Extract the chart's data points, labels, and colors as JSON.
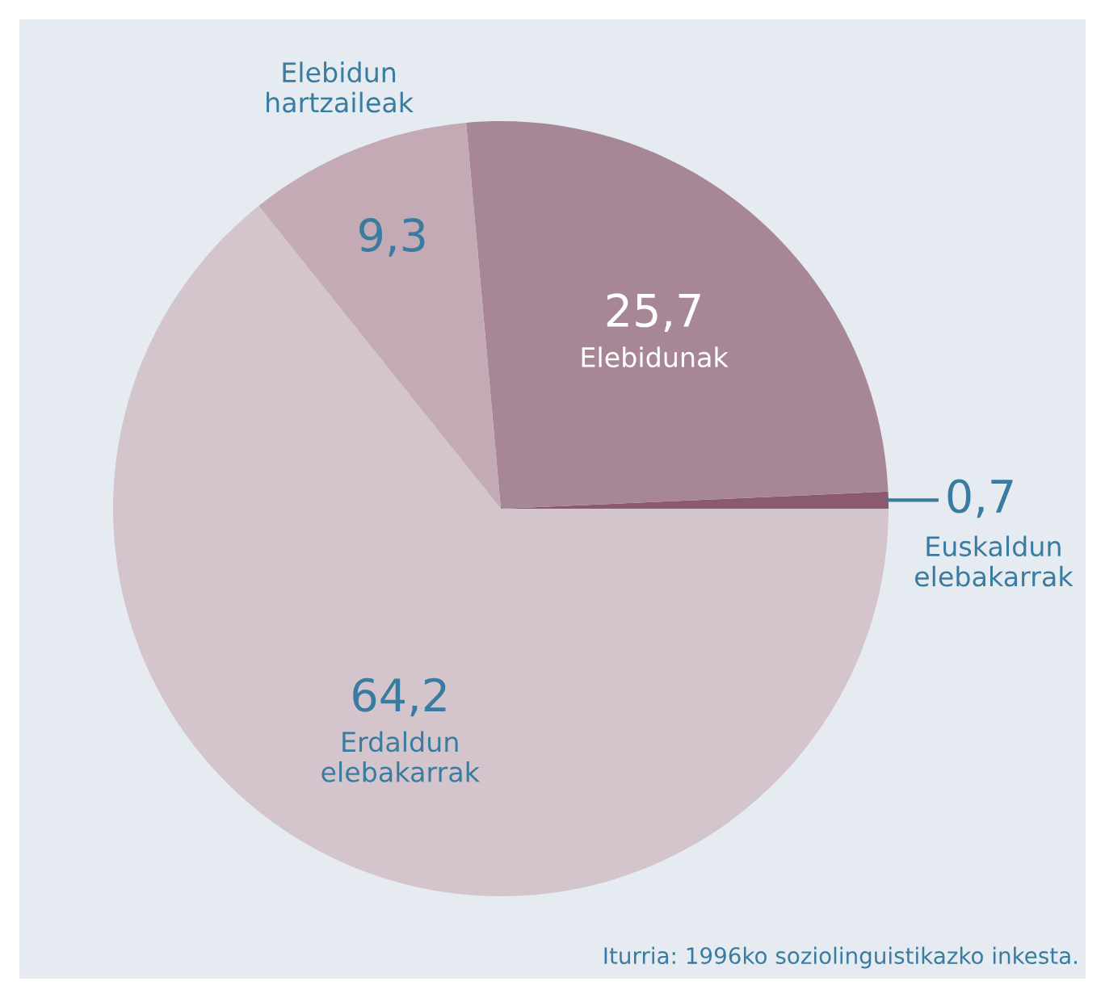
{
  "chart_data": {
    "type": "pie",
    "categories": [
      "Euskaldun elebakarrak",
      "Elebidunak",
      "Elebidun hartzaileak",
      "Erdaldun elebakarrak"
    ],
    "values": [
      0.7,
      25.7,
      9.3,
      64.2
    ],
    "value_labels": [
      "0,7",
      "25,7",
      "9,3",
      "64,2"
    ],
    "colors": [
      "#8c5a70",
      "#a78795",
      "#c3aab5",
      "#d3c5cb"
    ],
    "annotations": [
      "Iturria: 1996ko soziolinguistikazko inkesta."
    ]
  }
}
